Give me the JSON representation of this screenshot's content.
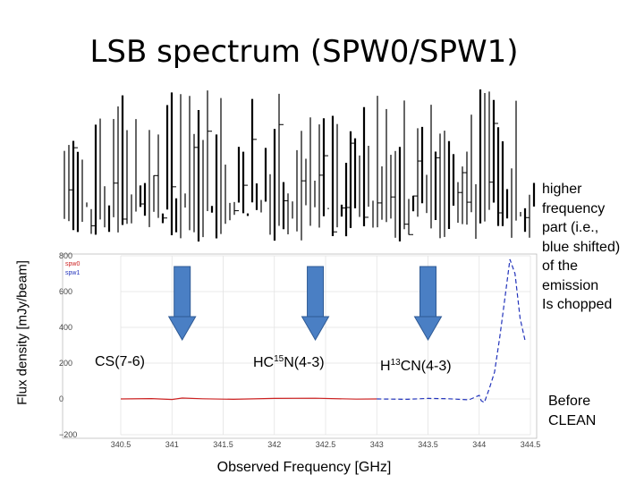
{
  "slide": {
    "title": "LSB spectrum (SPW0/SPW1)",
    "note_right_top": "higher\nfrequency\npart (i.e.,\nblue shifted)\nof the\nemission\nIs chopped",
    "note_right_bottom": "Before\nCLEAN"
  },
  "lines": [
    {
      "prefix": "CS(7-6)",
      "iso": "",
      "suffix": "",
      "freq": 341.1
    },
    {
      "prefix": "HC",
      "iso": "15",
      "suffix": "N(4-3)",
      "freq": 342.4
    },
    {
      "prefix": "H",
      "iso": "13",
      "suffix": "CN(4-3)",
      "freq": 343.5
    }
  ],
  "chart_data": {
    "type": "line",
    "xlabel": "Observed Frequency [GHz]",
    "ylabel": "Flux density [mJy/beam]",
    "xlim": [
      340.5,
      344.5
    ],
    "ylim": [
      -200,
      800
    ],
    "xticks": [
      "340.5",
      "341",
      "341.5",
      "342",
      "342.5",
      "343",
      "343.5",
      "344",
      "344.5"
    ],
    "yticks": [
      "−200",
      "0",
      "200",
      "400",
      "600",
      "800"
    ],
    "legend": {
      "placement": "top-left",
      "entries": [
        "spw0",
        "spw1"
      ]
    },
    "series": [
      {
        "name": "spw0",
        "color": "#cc2222",
        "dash": false,
        "x": [
          340.5,
          340.8,
          341.0,
          341.1,
          341.3,
          341.6,
          342.0,
          342.4,
          342.8,
          343.0
        ],
        "y": [
          0,
          2,
          -3,
          5,
          1,
          -2,
          3,
          4,
          -1,
          0
        ]
      },
      {
        "name": "spw1",
        "color": "#2233bb",
        "dash": true,
        "x": [
          343.0,
          343.3,
          343.5,
          343.7,
          343.9,
          344.0,
          344.02,
          344.05,
          344.1,
          344.15,
          344.2,
          344.25,
          344.3,
          344.35,
          344.4,
          344.45
        ],
        "y": [
          0,
          -2,
          3,
          1,
          -5,
          20,
          -10,
          -20,
          60,
          150,
          340,
          560,
          780,
          700,
          450,
          320
        ]
      }
    ]
  }
}
